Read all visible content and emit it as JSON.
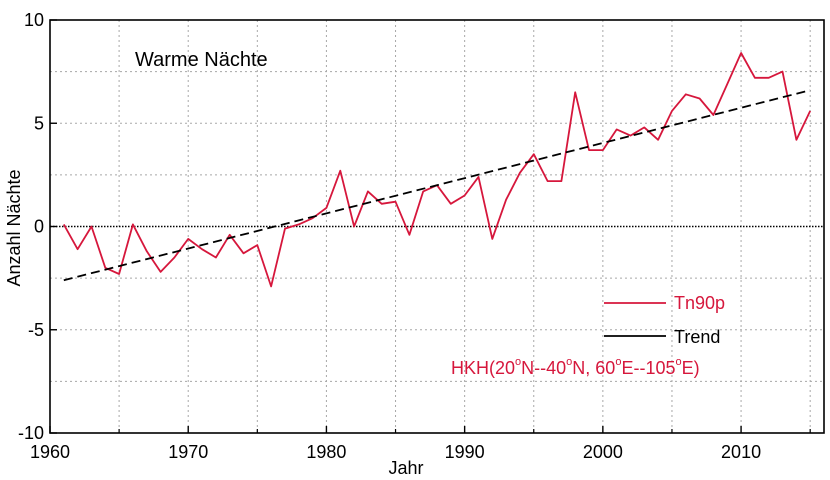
{
  "chart_data": {
    "type": "line",
    "title": "Warme Nächte",
    "xlabel": "Jahr",
    "ylabel": "Anzahl Nächte",
    "xlim": [
      1960,
      2016
    ],
    "ylim": [
      -10,
      10
    ],
    "xticks": [
      1960,
      1970,
      1980,
      1990,
      2000,
      2010
    ],
    "yticks": [
      -10,
      -5,
      0,
      5,
      10
    ],
    "grid": true,
    "legend_position": "bottom-right",
    "series": [
      {
        "name": "Tn90p",
        "color": "#d6173c",
        "x": [
          1961,
          1962,
          1963,
          1964,
          1965,
          1966,
          1967,
          1968,
          1969,
          1970,
          1971,
          1972,
          1973,
          1974,
          1975,
          1976,
          1977,
          1978,
          1979,
          1980,
          1981,
          1982,
          1983,
          1984,
          1985,
          1986,
          1987,
          1988,
          1989,
          1990,
          1991,
          1992,
          1993,
          1994,
          1995,
          1996,
          1997,
          1998,
          1999,
          2000,
          2001,
          2002,
          2003,
          2004,
          2005,
          2006,
          2007,
          2008,
          2009,
          2010,
          2011,
          2012,
          2013,
          2014,
          2015
        ],
        "values": [
          0.1,
          -1.1,
          0.0,
          -2.0,
          -2.3,
          0.1,
          -1.2,
          -2.2,
          -1.5,
          -0.6,
          -1.1,
          -1.5,
          -0.4,
          -1.3,
          -0.9,
          -2.9,
          -0.1,
          0.1,
          0.4,
          0.9,
          2.7,
          0.0,
          1.7,
          1.1,
          1.2,
          -0.4,
          1.7,
          2.0,
          1.1,
          1.5,
          2.4,
          -0.6,
          1.3,
          2.6,
          3.5,
          2.2,
          2.2,
          6.5,
          3.7,
          3.7,
          4.7,
          4.4,
          4.8,
          4.2,
          5.6,
          6.4,
          6.2,
          5.4,
          6.9,
          8.4,
          7.2,
          7.2,
          7.5,
          4.2,
          5.6
        ]
      },
      {
        "name": "Trend",
        "color": "#000000",
        "style": "dashed",
        "x": [
          1961,
          2015
        ],
        "values": [
          -2.6,
          6.6
        ]
      }
    ],
    "zero_line": {
      "y": 0,
      "style": "dotted"
    },
    "annotation": {
      "prefix": "HKH(",
      "part1": "20",
      "part2": "N--40",
      "part3": "N, 60",
      "part4": "E--105",
      "part5": "E)",
      "degree": "o",
      "color": "#d6173c"
    }
  }
}
